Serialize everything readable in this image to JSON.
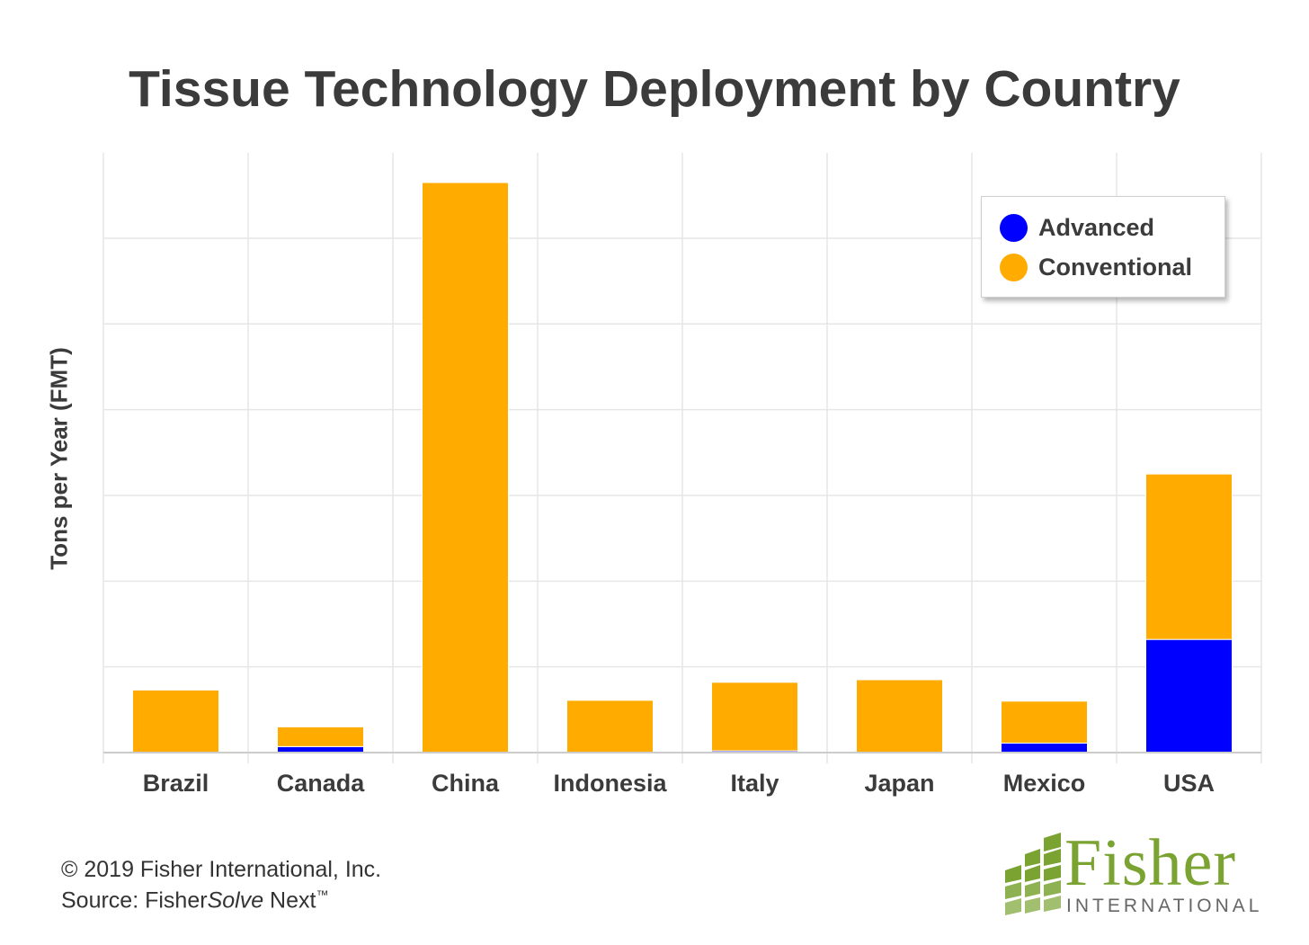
{
  "chart_data": {
    "type": "bar",
    "stacked": true,
    "title": "Tissue Technology Deployment by Country",
    "ylabel": "Tons per Year (FMT)",
    "xlabel": "",
    "categories": [
      "Brazil",
      "Canada",
      "China",
      "Indonesia",
      "Italy",
      "Japan",
      "Mexico",
      "USA"
    ],
    "series": [
      {
        "name": "Advanced",
        "color": "#0000ff",
        "values": [
          0,
          0.07,
          0,
          0,
          0.02,
          0,
          0.11,
          1.32
        ]
      },
      {
        "name": "Conventional",
        "color": "#ffab00",
        "values": [
          0.73,
          0.23,
          6.65,
          0.61,
          0.8,
          0.85,
          0.49,
          1.93
        ]
      }
    ],
    "ylim": [
      0,
      7
    ],
    "y_ticks_labeled": false,
    "grid": true,
    "legend_position": "top-right"
  },
  "footer": {
    "copyright": "© 2019 Fisher International, Inc.",
    "source_prefix": "Source: Fisher",
    "source_italic": "Solve",
    "source_suffix": " Next",
    "source_mark": "™"
  },
  "logo": {
    "name": "Fisher",
    "subtitle": "INTERNATIONAL",
    "color": "#7aa332"
  }
}
